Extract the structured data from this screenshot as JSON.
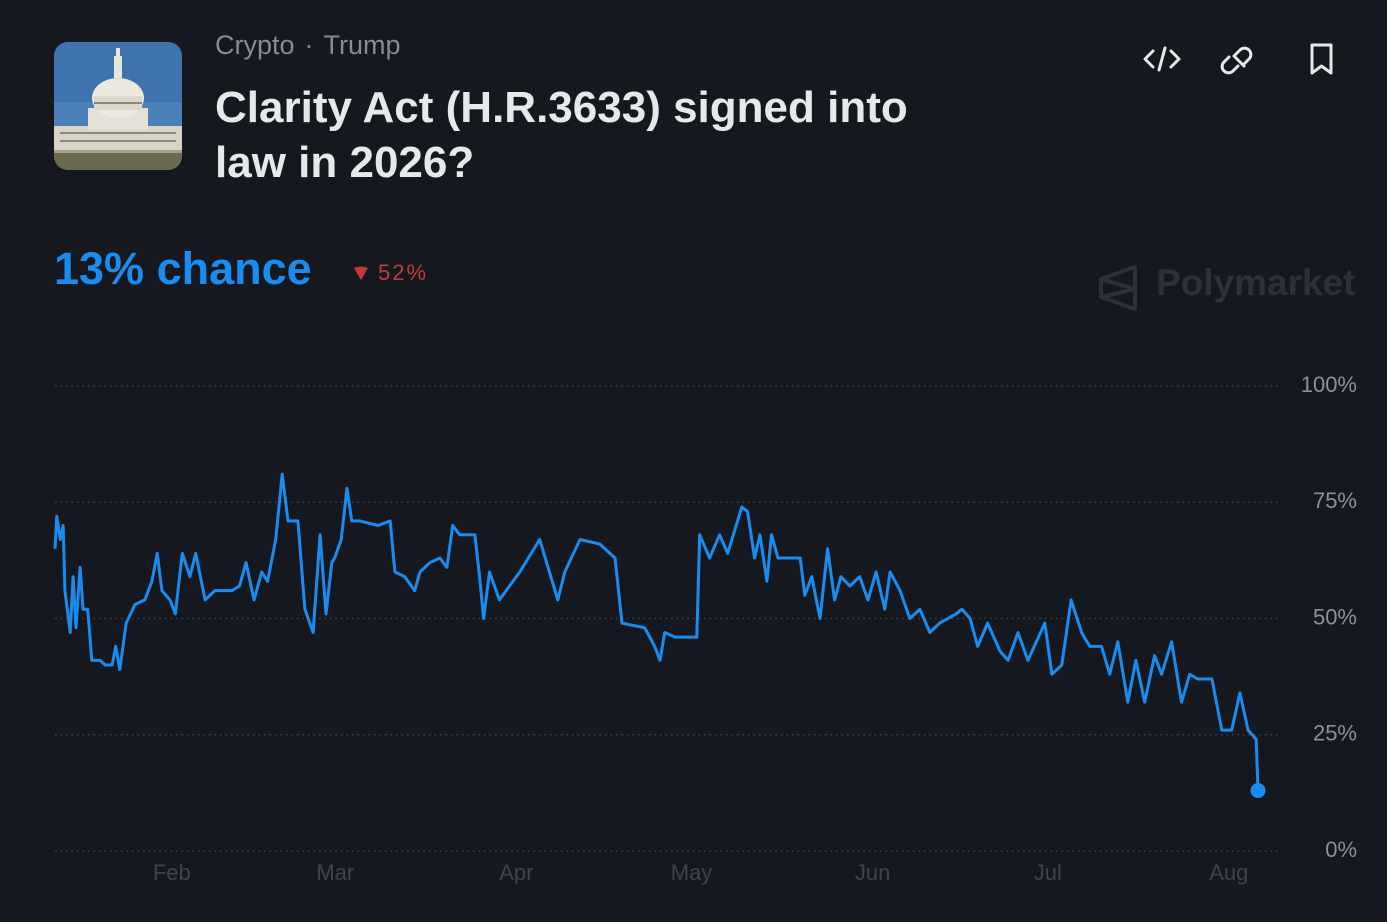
{
  "header": {
    "category": "Crypto",
    "subcategory": "Trump",
    "title": "Clarity Act (H.R.3633) signed into law in 2026?"
  },
  "summary": {
    "chance": "13% chance",
    "change": "52%"
  },
  "brand": "Polymarket",
  "chart_data": {
    "type": "line",
    "color": "#1a8cf0",
    "x": [
      12.0,
      12.3,
      12.9,
      13.4,
      13.7,
      14.6,
      15.1,
      15.6,
      16.3,
      16.8,
      17.6,
      18.3,
      19.7,
      20.6,
      21.8,
      22.4,
      23.1,
      24.2,
      25.7,
      27.4,
      28.6,
      29.5,
      30.3,
      31.7,
      32.6,
      33.8,
      35.1,
      36.1,
      37.7,
      39.4,
      42.3,
      43.6,
      44.7,
      46.1,
      47.4,
      48.4,
      49.8,
      50.9,
      51.9,
      53.6,
      54.8,
      56.2,
      57.4,
      58.4,
      59.4,
      59.9,
      61.0,
      62.0,
      62.8,
      64.2,
      67.3,
      69.4,
      70.2,
      71.9,
      73.6,
      74.5,
      76.2,
      77.9,
      79.1,
      80.1,
      81.3,
      83.9,
      84.7,
      85.4,
      86.4,
      88.1,
      91.6,
      95.0,
      98.1,
      99.3,
      101.9,
      105.3,
      107.9,
      109.1,
      113.0,
      114.7,
      115.6,
      116.4,
      118.2,
      120.7,
      121.9,
      122.4,
      124.1,
      125.8,
      127.2,
      128.4,
      129.6,
      130.6,
      131.8,
      132.7,
      133.9,
      134.7,
      135.8,
      137.9,
      139.6,
      140.4,
      141.6,
      143.0,
      144.3,
      145.5,
      146.6,
      148.1,
      149.8,
      151.2,
      152.6,
      154.1,
      155.0,
      156.7,
      158.4,
      160.1,
      161.8,
      163.5,
      166.3,
      167.3,
      168.7,
      170.0,
      171.7,
      173.8,
      175.2,
      176.9,
      178.6,
      181.5,
      182.7,
      184.4,
      186.0,
      187.8,
      189.2,
      191.2,
      192.6,
      194.0,
      195.7,
      197.1,
      198.6,
      200.3,
      201.5,
      203.2,
      204.9,
      206.3,
      207.7,
      210.1,
      211.8,
      213.5,
      214.9,
      216.3,
      217.7,
      218.0
    ],
    "values": [
      65,
      72,
      67,
      70,
      56,
      47,
      59,
      48,
      61,
      52,
      52,
      41,
      41,
      40,
      40,
      44,
      39,
      49,
      53,
      54,
      58,
      64,
      56,
      54,
      51,
      64,
      59,
      64,
      54,
      56,
      56,
      57,
      62,
      54,
      60,
      58,
      67,
      81,
      71,
      71,
      52,
      47,
      68,
      51,
      62,
      63,
      67,
      78,
      71,
      71,
      70,
      71,
      60,
      59,
      56,
      60,
      62,
      63,
      61,
      70,
      68,
      68,
      59,
      50,
      60,
      54,
      60,
      67,
      54,
      60,
      67,
      66,
      63,
      49,
      48,
      44,
      41,
      47,
      46,
      46,
      46,
      68,
      63,
      68,
      64,
      69,
      74,
      73,
      63,
      68,
      58,
      68,
      63,
      63,
      63,
      55,
      59,
      50,
      65,
      54,
      59,
      57,
      59,
      54,
      60,
      52,
      60,
      56,
      50,
      52,
      47,
      49,
      51,
      52,
      50,
      44,
      49,
      43,
      41,
      47,
      41,
      49,
      38,
      40,
      54,
      47,
      44,
      44,
      38,
      45,
      32,
      41,
      32,
      42,
      38,
      45,
      32,
      38,
      37,
      37,
      26,
      26,
      34,
      26,
      24,
      13
    ],
    "xlim": [
      12,
      218
    ],
    "xticks": [
      {
        "value": 32,
        "label": "Feb"
      },
      {
        "value": 60,
        "label": "Mar"
      },
      {
        "value": 91,
        "label": "Apr"
      },
      {
        "value": 121,
        "label": "May"
      },
      {
        "value": 152,
        "label": "Jun"
      },
      {
        "value": 182,
        "label": "Jul"
      },
      {
        "value": 213,
        "label": "Aug"
      }
    ],
    "ylim": [
      0,
      100
    ],
    "yticks": [
      {
        "value": 0,
        "label": "0%"
      },
      {
        "value": 25,
        "label": "25%"
      },
      {
        "value": 50,
        "label": "50%"
      },
      {
        "value": 75,
        "label": "75%"
      },
      {
        "value": 100,
        "label": "100%"
      }
    ],
    "grid": true
  }
}
